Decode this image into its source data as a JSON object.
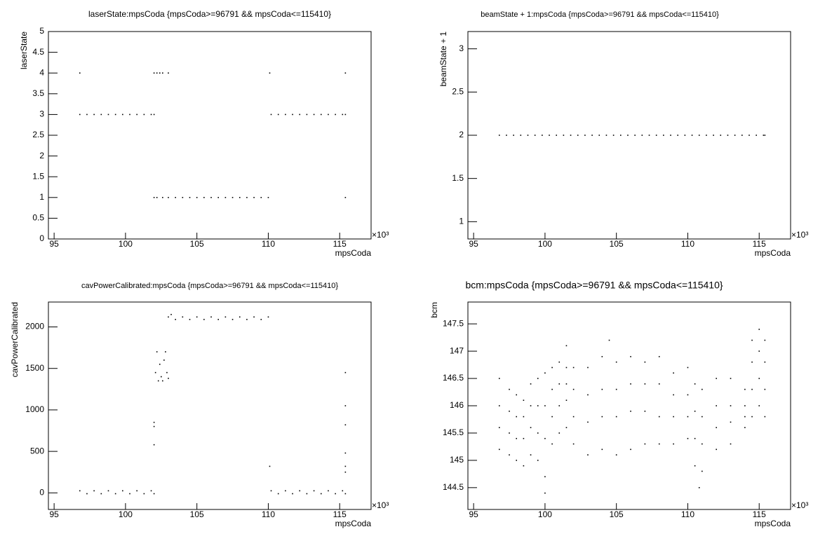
{
  "chart_data": [
    {
      "type": "scatter",
      "title": "laserState:mpsCoda {mpsCoda>=96791 && mpsCoda<=115410}",
      "xlabel": "mpsCoda",
      "ylabel": "laserState",
      "x_multiplier": "×10³",
      "color": "#000000",
      "xlim": [
        94.6,
        117.2
      ],
      "ylim": [
        0,
        5
      ],
      "xticks": [
        95,
        100,
        105,
        110,
        115
      ],
      "yticks": [
        0,
        0.5,
        1,
        1.5,
        2,
        2.5,
        3,
        3.5,
        4,
        4.5,
        5
      ],
      "x": [
        96.8,
        97.3,
        97.8,
        98.3,
        98.8,
        99.3,
        99.8,
        100.3,
        100.8,
        101.3,
        101.8,
        102.0,
        110.2,
        110.7,
        111.2,
        111.7,
        112.2,
        112.7,
        113.2,
        113.7,
        114.2,
        114.7,
        115.2,
        115.4,
        102.0,
        102.2,
        102.6,
        103.0,
        103.5,
        104.0,
        104.5,
        105.0,
        105.5,
        106.0,
        106.5,
        107.0,
        107.5,
        108.0,
        108.5,
        109.0,
        109.5,
        110.0,
        115.4,
        96.8,
        102.0,
        102.2,
        102.4,
        102.6,
        103.0,
        110.1,
        115.4
      ],
      "values": [
        3,
        3,
        3,
        3,
        3,
        3,
        3,
        3,
        3,
        3,
        3,
        3,
        3,
        3,
        3,
        3,
        3,
        3,
        3,
        3,
        3,
        3,
        3,
        3,
        1,
        1,
        1,
        1,
        1,
        1,
        1,
        1,
        1,
        1,
        1,
        1,
        1,
        1,
        1,
        1,
        1,
        1,
        1,
        4,
        4,
        4,
        4,
        4,
        4,
        4,
        4
      ]
    },
    {
      "type": "scatter",
      "title": "beamState + 1:mpsCoda {mpsCoda>=96791 && mpsCoda<=115410}",
      "xlabel": "mpsCoda",
      "ylabel": "beamState + 1",
      "x_multiplier": "×10³",
      "color": "#000000",
      "xlim": [
        94.6,
        117.2
      ],
      "ylim": [
        0.8,
        3.2
      ],
      "xticks": [
        95,
        100,
        105,
        110,
        115
      ],
      "yticks": [
        1,
        1.5,
        2,
        2.5,
        3
      ],
      "x": [
        96.8,
        97.3,
        97.8,
        98.3,
        98.8,
        99.3,
        99.8,
        100.3,
        100.8,
        101.3,
        101.8,
        102.3,
        102.8,
        103.3,
        103.8,
        104.3,
        104.8,
        105.3,
        105.8,
        106.3,
        106.8,
        107.3,
        107.8,
        108.3,
        108.8,
        109.3,
        109.8,
        110.3,
        110.8,
        111.3,
        111.8,
        112.3,
        112.8,
        113.3,
        113.8,
        114.3,
        114.8,
        115.3,
        115.4
      ],
      "values": [
        2,
        2,
        2,
        2,
        2,
        2,
        2,
        2,
        2,
        2,
        2,
        2,
        2,
        2,
        2,
        2,
        2,
        2,
        2,
        2,
        2,
        2,
        2,
        2,
        2,
        2,
        2,
        2,
        2,
        2,
        2,
        2,
        2,
        2,
        2,
        2,
        2,
        2,
        2
      ]
    },
    {
      "type": "scatter",
      "title": "cavPowerCalibrated:mpsCoda {mpsCoda>=96791 && mpsCoda<=115410}",
      "xlabel": "mpsCoda",
      "ylabel": "cavPowerCalibrated",
      "x_multiplier": "×10³",
      "color": "#000000",
      "xlim": [
        94.6,
        117.2
      ],
      "ylim": [
        -200,
        2300
      ],
      "xticks": [
        95,
        100,
        105,
        110,
        115
      ],
      "yticks": [
        0,
        500,
        1000,
        1500,
        2000
      ],
      "x": [
        96.8,
        97.3,
        97.8,
        98.3,
        98.8,
        99.3,
        99.8,
        100.3,
        100.8,
        101.3,
        101.8,
        102.0,
        110.2,
        110.7,
        111.2,
        111.7,
        112.2,
        112.7,
        113.2,
        113.7,
        114.2,
        114.7,
        115.2,
        115.4,
        103.0,
        103.5,
        104.0,
        104.5,
        105.0,
        105.5,
        106.0,
        106.5,
        107.0,
        107.5,
        108.0,
        108.5,
        109.0,
        109.5,
        110.0,
        103.2,
        102.1,
        102.2,
        102.3,
        102.4,
        102.5,
        102.6,
        102.7,
        102.8,
        102.9,
        103.0,
        102.0,
        102.0,
        102.0,
        110.1,
        115.4,
        115.4,
        115.4,
        115.4,
        115.4,
        115.4
      ],
      "values": [
        25,
        -10,
        25,
        -10,
        25,
        -10,
        25,
        -10,
        25,
        -10,
        25,
        -10,
        25,
        -10,
        25,
        -10,
        25,
        -10,
        25,
        -10,
        25,
        -10,
        25,
        -10,
        2120,
        2090,
        2120,
        2090,
        2120,
        2090,
        2120,
        2090,
        2120,
        2090,
        2120,
        2090,
        2120,
        2090,
        2120,
        2150,
        1450,
        1700,
        1350,
        1550,
        1400,
        1350,
        1600,
        1700,
        1450,
        1380,
        580,
        800,
        850,
        320,
        1450,
        1050,
        820,
        480,
        320,
        250
      ]
    },
    {
      "type": "scatter",
      "title": "bcm:mpsCoda {mpsCoda>=96791 && mpsCoda<=115410}",
      "xlabel": "mpsCoda",
      "ylabel": "bcm",
      "x_multiplier": "×10³",
      "color": "#000000",
      "xlim": [
        94.6,
        117.2
      ],
      "ylim": [
        144.1,
        147.9
      ],
      "xticks": [
        95,
        100,
        105,
        110,
        115
      ],
      "yticks": [
        144.5,
        145,
        145.5,
        146,
        146.5,
        147,
        147.5
      ],
      "x": [
        96.8,
        96.8,
        96.8,
        96.8,
        97.5,
        97.5,
        97.5,
        97.5,
        98,
        98,
        98,
        98,
        98.5,
        98.5,
        98.5,
        98.5,
        99,
        99,
        99,
        99,
        99.5,
        99.5,
        99.5,
        99.5,
        100,
        100,
        100,
        100,
        100.5,
        100.5,
        100.5,
        100.5,
        101,
        101,
        101,
        101,
        101.5,
        101.5,
        101.5,
        101.5,
        102,
        102,
        102,
        102,
        103,
        103,
        103,
        103,
        104,
        104,
        104,
        104,
        105,
        105,
        105,
        105,
        106,
        106,
        106,
        106,
        107,
        107,
        107,
        107,
        108,
        108,
        108,
        108,
        109,
        109,
        109,
        109,
        110,
        110,
        110,
        110,
        110.5,
        110.5,
        110.5,
        110.5,
        111,
        111,
        111,
        111,
        112,
        112,
        112,
        112,
        113,
        113,
        113,
        113,
        114,
        114,
        114,
        114,
        114.5,
        114.5,
        114.5,
        114.5,
        115,
        115,
        115,
        115,
        115.4,
        115.4,
        115.4,
        115.4,
        100,
        110.8,
        101.5,
        104.5
      ],
      "values": [
        145.2,
        145.6,
        146.0,
        146.5,
        145.1,
        145.5,
        145.9,
        146.3,
        145.0,
        145.4,
        145.8,
        146.2,
        144.9,
        145.4,
        145.8,
        146.1,
        145.1,
        145.6,
        146.0,
        146.4,
        145.0,
        145.5,
        146.0,
        146.5,
        144.7,
        145.4,
        146.0,
        146.6,
        145.3,
        145.8,
        146.3,
        146.7,
        145.5,
        146.0,
        146.4,
        146.8,
        145.6,
        146.1,
        146.4,
        146.7,
        145.3,
        145.8,
        146.3,
        146.7,
        145.1,
        145.7,
        146.2,
        146.7,
        145.2,
        145.8,
        146.3,
        146.9,
        145.1,
        145.8,
        146.3,
        146.8,
        145.2,
        145.9,
        146.4,
        146.9,
        145.3,
        145.9,
        146.4,
        146.8,
        145.3,
        145.8,
        146.4,
        146.9,
        145.3,
        145.8,
        146.2,
        146.6,
        145.4,
        145.8,
        146.2,
        146.7,
        144.9,
        145.4,
        145.9,
        146.4,
        144.8,
        145.3,
        145.8,
        146.3,
        145.2,
        145.6,
        146.0,
        146.5,
        145.3,
        145.7,
        146.0,
        146.5,
        145.6,
        145.8,
        146.0,
        146.3,
        145.8,
        146.3,
        146.8,
        147.2,
        146.0,
        146.5,
        147.0,
        147.4,
        145.8,
        146.3,
        146.8,
        147.2,
        144.4,
        144.5,
        147.1,
        147.2
      ]
    }
  ]
}
